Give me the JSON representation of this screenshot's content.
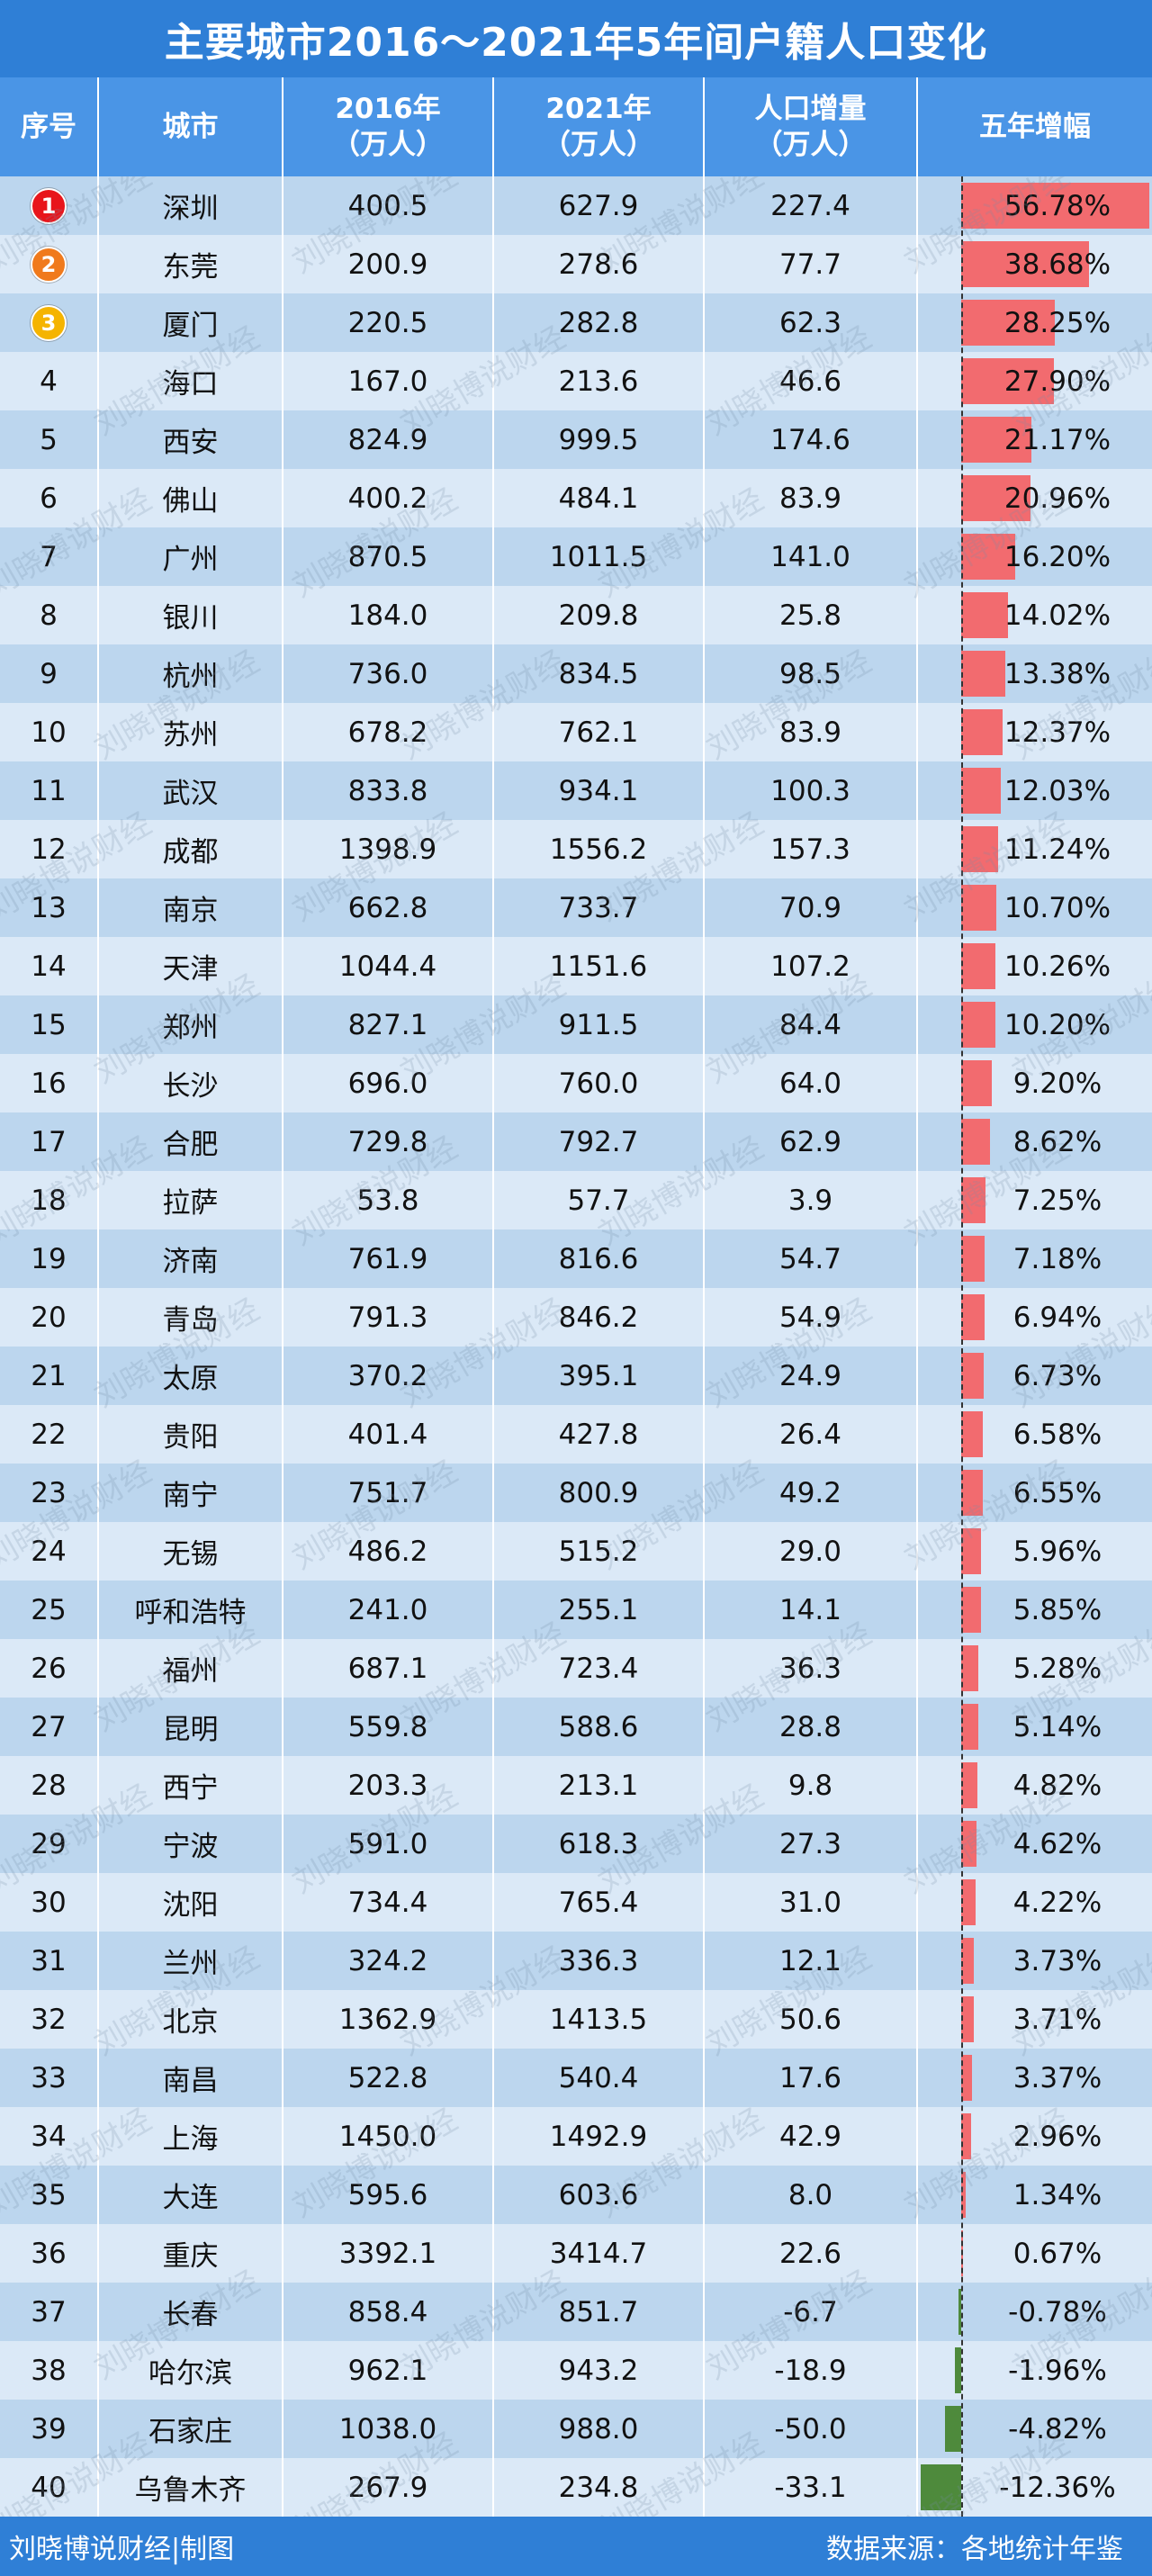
{
  "title": "主要城市2016～2021年5年间户籍人口变化",
  "headers": {
    "rank": "序号",
    "city": "城市",
    "y2016_line1": "2016年",
    "y2016_line2": "（万人）",
    "y2021_line1": "2021年",
    "y2021_line2": "（万人）",
    "inc_line1": "人口增量",
    "inc_line2": "（万人）",
    "growth": "五年增幅"
  },
  "watermark": "刘晓博说财经",
  "footer": {
    "left": "刘晓博说财经|制图",
    "right": "数据来源：各地统计年鉴"
  },
  "colors": {
    "title_bg": "#2f7fd6",
    "header_bg": "#4a95e6",
    "row_light": "#dbe9f7",
    "row_dark": "#bcd6ee",
    "bar_positive": "#f26b6f",
    "bar_negative": "#4e8a3c",
    "badge_1": "#e8151b",
    "badge_2": "#f07a1c",
    "badge_3": "#f5b400"
  },
  "rows": [
    {
      "rank": "1",
      "city": "深圳",
      "y2016": "400.5",
      "y2021": "627.9",
      "inc": "227.4",
      "growth": "56.78%",
      "pct": 56.78,
      "badge": true
    },
    {
      "rank": "2",
      "city": "东莞",
      "y2016": "200.9",
      "y2021": "278.6",
      "inc": "77.7",
      "growth": "38.68%",
      "pct": 38.68,
      "badge": true
    },
    {
      "rank": "3",
      "city": "厦门",
      "y2016": "220.5",
      "y2021": "282.8",
      "inc": "62.3",
      "growth": "28.25%",
      "pct": 28.25,
      "badge": true
    },
    {
      "rank": "4",
      "city": "海口",
      "y2016": "167.0",
      "y2021": "213.6",
      "inc": "46.6",
      "growth": "27.90%",
      "pct": 27.9
    },
    {
      "rank": "5",
      "city": "西安",
      "y2016": "824.9",
      "y2021": "999.5",
      "inc": "174.6",
      "growth": "21.17%",
      "pct": 21.17
    },
    {
      "rank": "6",
      "city": "佛山",
      "y2016": "400.2",
      "y2021": "484.1",
      "inc": "83.9",
      "growth": "20.96%",
      "pct": 20.96
    },
    {
      "rank": "7",
      "city": "广州",
      "y2016": "870.5",
      "y2021": "1011.5",
      "inc": "141.0",
      "growth": "16.20%",
      "pct": 16.2
    },
    {
      "rank": "8",
      "city": "银川",
      "y2016": "184.0",
      "y2021": "209.8",
      "inc": "25.8",
      "growth": "14.02%",
      "pct": 14.02
    },
    {
      "rank": "9",
      "city": "杭州",
      "y2016": "736.0",
      "y2021": "834.5",
      "inc": "98.5",
      "growth": "13.38%",
      "pct": 13.38
    },
    {
      "rank": "10",
      "city": "苏州",
      "y2016": "678.2",
      "y2021": "762.1",
      "inc": "83.9",
      "growth": "12.37%",
      "pct": 12.37
    },
    {
      "rank": "11",
      "city": "武汉",
      "y2016": "833.8",
      "y2021": "934.1",
      "inc": "100.3",
      "growth": "12.03%",
      "pct": 12.03
    },
    {
      "rank": "12",
      "city": "成都",
      "y2016": "1398.9",
      "y2021": "1556.2",
      "inc": "157.3",
      "growth": "11.24%",
      "pct": 11.24
    },
    {
      "rank": "13",
      "city": "南京",
      "y2016": "662.8",
      "y2021": "733.7",
      "inc": "70.9",
      "growth": "10.70%",
      "pct": 10.7
    },
    {
      "rank": "14",
      "city": "天津",
      "y2016": "1044.4",
      "y2021": "1151.6",
      "inc": "107.2",
      "growth": "10.26%",
      "pct": 10.26
    },
    {
      "rank": "15",
      "city": "郑州",
      "y2016": "827.1",
      "y2021": "911.5",
      "inc": "84.4",
      "growth": "10.20%",
      "pct": 10.2
    },
    {
      "rank": "16",
      "city": "长沙",
      "y2016": "696.0",
      "y2021": "760.0",
      "inc": "64.0",
      "growth": "9.20%",
      "pct": 9.2
    },
    {
      "rank": "17",
      "city": "合肥",
      "y2016": "729.8",
      "y2021": "792.7",
      "inc": "62.9",
      "growth": "8.62%",
      "pct": 8.62
    },
    {
      "rank": "18",
      "city": "拉萨",
      "y2016": "53.8",
      "y2021": "57.7",
      "inc": "3.9",
      "growth": "7.25%",
      "pct": 7.25
    },
    {
      "rank": "19",
      "city": "济南",
      "y2016": "761.9",
      "y2021": "816.6",
      "inc": "54.7",
      "growth": "7.18%",
      "pct": 7.18
    },
    {
      "rank": "20",
      "city": "青岛",
      "y2016": "791.3",
      "y2021": "846.2",
      "inc": "54.9",
      "growth": "6.94%",
      "pct": 6.94
    },
    {
      "rank": "21",
      "city": "太原",
      "y2016": "370.2",
      "y2021": "395.1",
      "inc": "24.9",
      "growth": "6.73%",
      "pct": 6.73
    },
    {
      "rank": "22",
      "city": "贵阳",
      "y2016": "401.4",
      "y2021": "427.8",
      "inc": "26.4",
      "growth": "6.58%",
      "pct": 6.58
    },
    {
      "rank": "23",
      "city": "南宁",
      "y2016": "751.7",
      "y2021": "800.9",
      "inc": "49.2",
      "growth": "6.55%",
      "pct": 6.55
    },
    {
      "rank": "24",
      "city": "无锡",
      "y2016": "486.2",
      "y2021": "515.2",
      "inc": "29.0",
      "growth": "5.96%",
      "pct": 5.96
    },
    {
      "rank": "25",
      "city": "呼和浩特",
      "y2016": "241.0",
      "y2021": "255.1",
      "inc": "14.1",
      "growth": "5.85%",
      "pct": 5.85
    },
    {
      "rank": "26",
      "city": "福州",
      "y2016": "687.1",
      "y2021": "723.4",
      "inc": "36.3",
      "growth": "5.28%",
      "pct": 5.28
    },
    {
      "rank": "27",
      "city": "昆明",
      "y2016": "559.8",
      "y2021": "588.6",
      "inc": "28.8",
      "growth": "5.14%",
      "pct": 5.14
    },
    {
      "rank": "28",
      "city": "西宁",
      "y2016": "203.3",
      "y2021": "213.1",
      "inc": "9.8",
      "growth": "4.82%",
      "pct": 4.82
    },
    {
      "rank": "29",
      "city": "宁波",
      "y2016": "591.0",
      "y2021": "618.3",
      "inc": "27.3",
      "growth": "4.62%",
      "pct": 4.62
    },
    {
      "rank": "30",
      "city": "沈阳",
      "y2016": "734.4",
      "y2021": "765.4",
      "inc": "31.0",
      "growth": "4.22%",
      "pct": 4.22
    },
    {
      "rank": "31",
      "city": "兰州",
      "y2016": "324.2",
      "y2021": "336.3",
      "inc": "12.1",
      "growth": "3.73%",
      "pct": 3.73
    },
    {
      "rank": "32",
      "city": "北京",
      "y2016": "1362.9",
      "y2021": "1413.5",
      "inc": "50.6",
      "growth": "3.71%",
      "pct": 3.71
    },
    {
      "rank": "33",
      "city": "南昌",
      "y2016": "522.8",
      "y2021": "540.4",
      "inc": "17.6",
      "growth": "3.37%",
      "pct": 3.37
    },
    {
      "rank": "34",
      "city": "上海",
      "y2016": "1450.0",
      "y2021": "1492.9",
      "inc": "42.9",
      "growth": "2.96%",
      "pct": 2.96
    },
    {
      "rank": "35",
      "city": "大连",
      "y2016": "595.6",
      "y2021": "603.6",
      "inc": "8.0",
      "growth": "1.34%",
      "pct": 1.34
    },
    {
      "rank": "36",
      "city": "重庆",
      "y2016": "3392.1",
      "y2021": "3414.7",
      "inc": "22.6",
      "growth": "0.67%",
      "pct": 0.67
    },
    {
      "rank": "37",
      "city": "长春",
      "y2016": "858.4",
      "y2021": "851.7",
      "inc": "-6.7",
      "growth": "-0.78%",
      "pct": -0.78
    },
    {
      "rank": "38",
      "city": "哈尔滨",
      "y2016": "962.1",
      "y2021": "943.2",
      "inc": "-18.9",
      "growth": "-1.96%",
      "pct": -1.96
    },
    {
      "rank": "39",
      "city": "石家庄",
      "y2016": "1038.0",
      "y2021": "988.0",
      "inc": "-50.0",
      "growth": "-4.82%",
      "pct": -4.82
    },
    {
      "rank": "40",
      "city": "乌鲁木齐",
      "y2016": "267.9",
      "y2021": "234.8",
      "inc": "-33.1",
      "growth": "-12.36%",
      "pct": -12.36
    }
  ]
}
